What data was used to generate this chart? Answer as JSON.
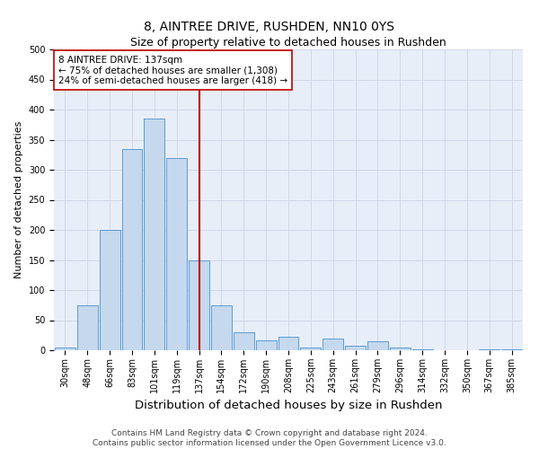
{
  "title": "8, AINTREE DRIVE, RUSHDEN, NN10 0YS",
  "subtitle": "Size of property relative to detached houses in Rushden",
  "xlabel": "Distribution of detached houses by size in Rushden",
  "ylabel": "Number of detached properties",
  "categories": [
    "30sqm",
    "48sqm",
    "66sqm",
    "83sqm",
    "101sqm",
    "119sqm",
    "137sqm",
    "154sqm",
    "172sqm",
    "190sqm",
    "208sqm",
    "225sqm",
    "243sqm",
    "261sqm",
    "279sqm",
    "296sqm",
    "314sqm",
    "332sqm",
    "350sqm",
    "367sqm",
    "385sqm"
  ],
  "values": [
    5,
    75,
    200,
    335,
    385,
    320,
    150,
    75,
    30,
    17,
    22,
    5,
    20,
    8,
    15,
    5,
    2,
    0,
    0,
    2,
    2
  ],
  "bar_color": "#c5d8ed",
  "bar_edge_color": "#5b9bd5",
  "highlight_index": 6,
  "highlight_color": "#c00000",
  "annotation_line1": "8 AINTREE DRIVE: 137sqm",
  "annotation_line2": "← 75% of detached houses are smaller (1,308)",
  "annotation_line3": "24% of semi-detached houses are larger (418) →",
  "annotation_box_color": "#ffffff",
  "annotation_box_edge": "#c00000",
  "ylim": [
    0,
    500
  ],
  "yticks": [
    0,
    50,
    100,
    150,
    200,
    250,
    300,
    350,
    400,
    450,
    500
  ],
  "grid_color": "#d0d8e8",
  "background_color": "#e8eef8",
  "footer_line1": "Contains HM Land Registry data © Crown copyright and database right 2024.",
  "footer_line2": "Contains public sector information licensed under the Open Government Licence v3.0.",
  "title_fontsize": 10,
  "subtitle_fontsize": 9,
  "xlabel_fontsize": 9,
  "ylabel_fontsize": 8,
  "tick_fontsize": 7,
  "annotation_fontsize": 7.5,
  "footer_fontsize": 6.5
}
